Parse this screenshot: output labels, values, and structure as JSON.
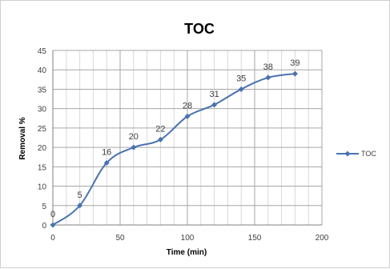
{
  "chart_data": {
    "type": "line",
    "title": "TOC",
    "xlabel": "Time (min)",
    "ylabel": "Removal %",
    "xlim": [
      0,
      200
    ],
    "ylim": [
      0,
      45
    ],
    "x_ticks": [
      0,
      50,
      100,
      150,
      200
    ],
    "y_ticks": [
      0,
      5,
      10,
      15,
      20,
      25,
      30,
      35,
      40,
      45
    ],
    "grid": true,
    "legend": "right",
    "series": [
      {
        "name": "TOC",
        "color": "#4a72b0",
        "x": [
          0,
          20,
          40,
          60,
          80,
          100,
          120,
          140,
          160,
          180
        ],
        "values": [
          0,
          5,
          16,
          20,
          22,
          28,
          31,
          35,
          38,
          39
        ],
        "labels": [
          "0",
          "5",
          "16",
          "20",
          "22",
          "28",
          "31",
          "35",
          "38",
          "39"
        ]
      }
    ]
  }
}
